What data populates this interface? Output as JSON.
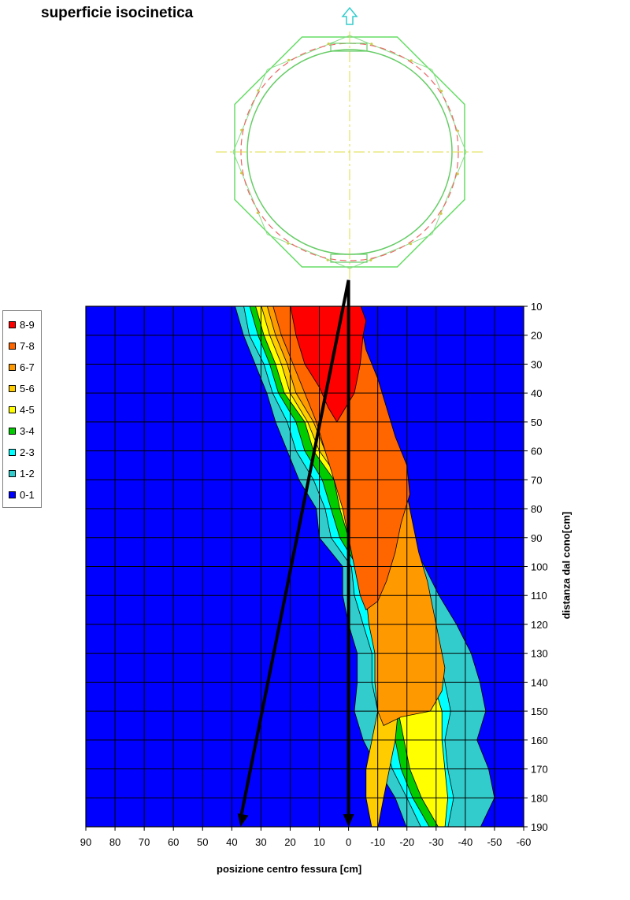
{
  "page_title": "superficie isocinetica",
  "chart_data": {
    "type": "heatmap",
    "subtype": "filled-contour",
    "title": "superficie isocinetica",
    "xlabel": "posizione centro fessura [cm]",
    "ylabel": "distanza dal cono[cm]",
    "x_ticks": [
      90,
      80,
      70,
      60,
      50,
      40,
      30,
      20,
      10,
      0,
      -10,
      -20,
      -30,
      -40,
      -50,
      -60
    ],
    "y_ticks": [
      10,
      20,
      30,
      40,
      50,
      60,
      70,
      80,
      90,
      100,
      110,
      120,
      130,
      140,
      150,
      160,
      170,
      180,
      190
    ],
    "xlim": [
      90,
      -60
    ],
    "ylim": [
      10,
      190
    ],
    "x_axis_reversed": true,
    "y_axis_reversed": true,
    "y_axis_position": "right",
    "grid": true,
    "legend_position": "left",
    "legend": [
      {
        "label": "8-9",
        "color": "#ff0000"
      },
      {
        "label": "7-8",
        "color": "#ff6600"
      },
      {
        "label": "6-7",
        "color": "#ff9900"
      },
      {
        "label": "5-6",
        "color": "#ffcc00"
      },
      {
        "label": "4-5",
        "color": "#ffff00"
      },
      {
        "label": "3-4",
        "color": "#00cc00"
      },
      {
        "label": "2-3",
        "color": "#00ffff"
      },
      {
        "label": "1-2",
        "color": "#33cccc"
      },
      {
        "label": "0-1",
        "color": "#0000ff"
      }
    ],
    "background_level": "0-1",
    "contour_bands": [
      {
        "level": "1-2",
        "color": "#33cccc",
        "outline": [
          [
            39,
            10
          ],
          [
            36,
            20
          ],
          [
            32,
            30
          ],
          [
            28,
            40
          ],
          [
            25,
            50
          ],
          [
            21,
            60
          ],
          [
            17,
            70
          ],
          [
            11,
            80
          ],
          [
            10,
            90
          ],
          [
            2,
            100
          ],
          [
            2,
            110
          ],
          [
            0,
            120
          ],
          [
            -3,
            130
          ],
          [
            -3,
            140
          ],
          [
            -2,
            150
          ],
          [
            -5,
            160
          ],
          [
            -10,
            170
          ],
          [
            -16,
            180
          ],
          [
            -20,
            190
          ],
          [
            -45,
            190
          ],
          [
            -50,
            180
          ],
          [
            -48,
            170
          ],
          [
            -44,
            160
          ],
          [
            -47,
            150
          ],
          [
            -45,
            140
          ],
          [
            -42,
            130
          ],
          [
            -37,
            120
          ],
          [
            -31,
            110
          ],
          [
            -26,
            100
          ],
          [
            -21,
            90
          ],
          [
            -19,
            80
          ],
          [
            -14,
            70
          ],
          [
            -13,
            60
          ],
          [
            -9,
            50
          ],
          [
            -5,
            40
          ],
          [
            -3,
            30
          ],
          [
            -1,
            20
          ],
          [
            1,
            10
          ]
        ]
      },
      {
        "level": "2-3",
        "color": "#00ffff",
        "outline": [
          [
            36,
            10
          ],
          [
            34,
            20
          ],
          [
            29,
            30
          ],
          [
            26,
            40
          ],
          [
            21,
            50
          ],
          [
            18,
            60
          ],
          [
            12,
            70
          ],
          [
            8,
            80
          ],
          [
            6,
            90
          ],
          [
            -1,
            100
          ],
          [
            -2,
            110
          ],
          [
            -5,
            120
          ],
          [
            -8,
            130
          ],
          [
            -8,
            140
          ],
          [
            -10,
            150
          ],
          [
            -12,
            160
          ],
          [
            -15,
            170
          ],
          [
            -20,
            180
          ],
          [
            -25,
            190
          ],
          [
            -34,
            190
          ],
          [
            -36,
            180
          ],
          [
            -34,
            170
          ],
          [
            -33,
            160
          ],
          [
            -35,
            150
          ],
          [
            -33,
            140
          ],
          [
            -31,
            130
          ],
          [
            -29,
            120
          ],
          [
            -25,
            110
          ],
          [
            -22,
            100
          ],
          [
            -18,
            90
          ],
          [
            -15,
            80
          ],
          [
            -11,
            70
          ],
          [
            -10,
            60
          ],
          [
            -6,
            50
          ],
          [
            -3,
            40
          ],
          [
            -1,
            30
          ],
          [
            0,
            20
          ],
          [
            2,
            10
          ]
        ]
      },
      {
        "level": "3-4",
        "color": "#00cc00",
        "outline": [
          [
            34,
            10
          ],
          [
            31,
            20
          ],
          [
            27,
            30
          ],
          [
            24,
            40
          ],
          [
            18,
            50
          ],
          [
            15,
            60
          ],
          [
            9,
            70
          ],
          [
            6,
            80
          ],
          [
            3,
            90
          ],
          [
            -3,
            100
          ],
          [
            -5,
            110
          ],
          [
            -8,
            120
          ],
          [
            -12,
            130
          ],
          [
            -12,
            140
          ],
          [
            -14,
            150
          ],
          [
            -16,
            160
          ],
          [
            -18,
            170
          ],
          [
            -22,
            180
          ],
          [
            -28,
            190
          ],
          [
            -30,
            190
          ],
          [
            -31,
            180
          ],
          [
            -29,
            170
          ],
          [
            -28,
            160
          ],
          [
            -29,
            150
          ],
          [
            -27,
            140
          ],
          [
            -26,
            130
          ],
          [
            -24,
            120
          ],
          [
            -22,
            110
          ],
          [
            -19,
            100
          ],
          [
            -16,
            90
          ],
          [
            -12,
            80
          ],
          [
            -9,
            70
          ],
          [
            -8,
            60
          ],
          [
            -5,
            50
          ],
          [
            -3,
            40
          ],
          [
            -1,
            30
          ],
          [
            1,
            20
          ],
          [
            3,
            10
          ]
        ]
      },
      {
        "level": "4-5",
        "color": "#ffff00",
        "outline": [
          [
            32,
            10
          ],
          [
            29,
            20
          ],
          [
            25,
            30
          ],
          [
            22,
            40
          ],
          [
            15,
            50
          ],
          [
            12,
            60
          ],
          [
            5,
            70
          ],
          [
            3,
            80
          ],
          [
            0,
            90
          ],
          [
            -5,
            100
          ],
          [
            -7,
            110
          ],
          [
            -10,
            120
          ],
          [
            -15,
            130
          ],
          [
            -15,
            140
          ],
          [
            -17,
            150
          ],
          [
            -19,
            160
          ],
          [
            -21,
            170
          ],
          [
            -25,
            180
          ],
          [
            -31,
            190
          ],
          [
            -33,
            190
          ],
          [
            -34,
            180
          ],
          [
            -33,
            170
          ],
          [
            -32,
            160
          ],
          [
            -32,
            150
          ],
          [
            -29,
            140
          ],
          [
            -29,
            130
          ],
          [
            -26,
            120
          ],
          [
            -24,
            110
          ],
          [
            -20,
            100
          ],
          [
            -18,
            90
          ],
          [
            -14,
            80
          ],
          [
            -12,
            70
          ],
          [
            -10,
            60
          ],
          [
            -8,
            50
          ],
          [
            -5,
            40
          ],
          [
            -3,
            30
          ],
          [
            -1,
            20
          ],
          [
            0,
            10
          ]
        ]
      },
      {
        "level": "5-6",
        "color": "#ffcc00",
        "outline": [
          [
            30,
            10
          ],
          [
            27,
            20
          ],
          [
            23,
            30
          ],
          [
            20,
            40
          ],
          [
            14,
            50
          ],
          [
            10,
            60
          ],
          [
            3,
            70
          ],
          [
            0,
            80
          ],
          [
            -2,
            90
          ],
          [
            -6,
            100
          ],
          [
            -9,
            110
          ],
          [
            -11,
            120
          ],
          [
            -15,
            130
          ],
          [
            -16,
            140
          ],
          [
            -17,
            150
          ],
          [
            -16,
            160
          ],
          [
            -14,
            170
          ],
          [
            -12,
            180
          ],
          [
            -10,
            190
          ],
          [
            -8,
            190
          ],
          [
            -6,
            180
          ],
          [
            -6,
            170
          ],
          [
            -8,
            160
          ],
          [
            -10,
            150
          ],
          [
            -10,
            140
          ],
          [
            -10,
            130
          ],
          [
            -10,
            120
          ],
          [
            -8,
            110
          ],
          [
            -8,
            100
          ],
          [
            -6,
            90
          ],
          [
            -4,
            80
          ],
          [
            -2,
            70
          ],
          [
            -2,
            60
          ],
          [
            -1,
            50
          ],
          [
            0,
            40
          ],
          [
            0,
            30
          ],
          [
            2,
            20
          ],
          [
            4,
            10
          ]
        ]
      },
      {
        "level": "6-7",
        "color": "#ff9900",
        "outline": [
          [
            28,
            10
          ],
          [
            25,
            20
          ],
          [
            21,
            30
          ],
          [
            18,
            40
          ],
          [
            12,
            50
          ],
          [
            8,
            60
          ],
          [
            2,
            70
          ],
          [
            0,
            80
          ],
          [
            -3,
            90
          ],
          [
            -5,
            100
          ],
          [
            -6,
            110
          ],
          [
            -7,
            120
          ],
          [
            -9,
            130
          ],
          [
            -9,
            140
          ],
          [
            -10,
            150
          ],
          [
            -12,
            155
          ],
          [
            -18,
            152
          ],
          [
            -28,
            150
          ],
          [
            -32,
            143
          ],
          [
            -33,
            135
          ],
          [
            -31,
            125
          ],
          [
            -29,
            115
          ],
          [
            -27,
            105
          ],
          [
            -24,
            95
          ],
          [
            -22,
            85
          ],
          [
            -20,
            75
          ],
          [
            -18,
            65
          ],
          [
            -14,
            55
          ],
          [
            -10,
            45
          ],
          [
            -7,
            35
          ],
          [
            -4,
            25
          ],
          [
            -2,
            15
          ],
          [
            -1,
            10
          ]
        ]
      },
      {
        "level": "7-8",
        "color": "#ff6600",
        "outline": [
          [
            26,
            10
          ],
          [
            23,
            20
          ],
          [
            19,
            30
          ],
          [
            15,
            40
          ],
          [
            11,
            50
          ],
          [
            8,
            60
          ],
          [
            5,
            70
          ],
          [
            2,
            80
          ],
          [
            0,
            90
          ],
          [
            -2,
            100
          ],
          [
            -4,
            110
          ],
          [
            -6,
            115
          ],
          [
            -10,
            112
          ],
          [
            -13,
            105
          ],
          [
            -16,
            95
          ],
          [
            -18,
            85
          ],
          [
            -21,
            75
          ],
          [
            -20,
            65
          ],
          [
            -16,
            55
          ],
          [
            -13,
            45
          ],
          [
            -10,
            35
          ],
          [
            -6,
            25
          ],
          [
            -4,
            15
          ],
          [
            -3,
            10
          ]
        ]
      },
      {
        "level": "8-9",
        "color": "#ff0000",
        "outline": [
          [
            20,
            10
          ],
          [
            18,
            20
          ],
          [
            15,
            30
          ],
          [
            10,
            38
          ],
          [
            7,
            45
          ],
          [
            4,
            50
          ],
          [
            1,
            45
          ],
          [
            -2,
            40
          ],
          [
            -4,
            30
          ],
          [
            -5,
            20
          ],
          [
            -6,
            15
          ],
          [
            -4,
            10
          ]
        ]
      }
    ],
    "annotations": [
      {
        "type": "arrow",
        "from": [
          0,
          5
        ],
        "to": [
          37,
          190
        ]
      },
      {
        "type": "arrow",
        "from": [
          0,
          5
        ],
        "to": [
          0,
          190
        ]
      }
    ]
  }
}
